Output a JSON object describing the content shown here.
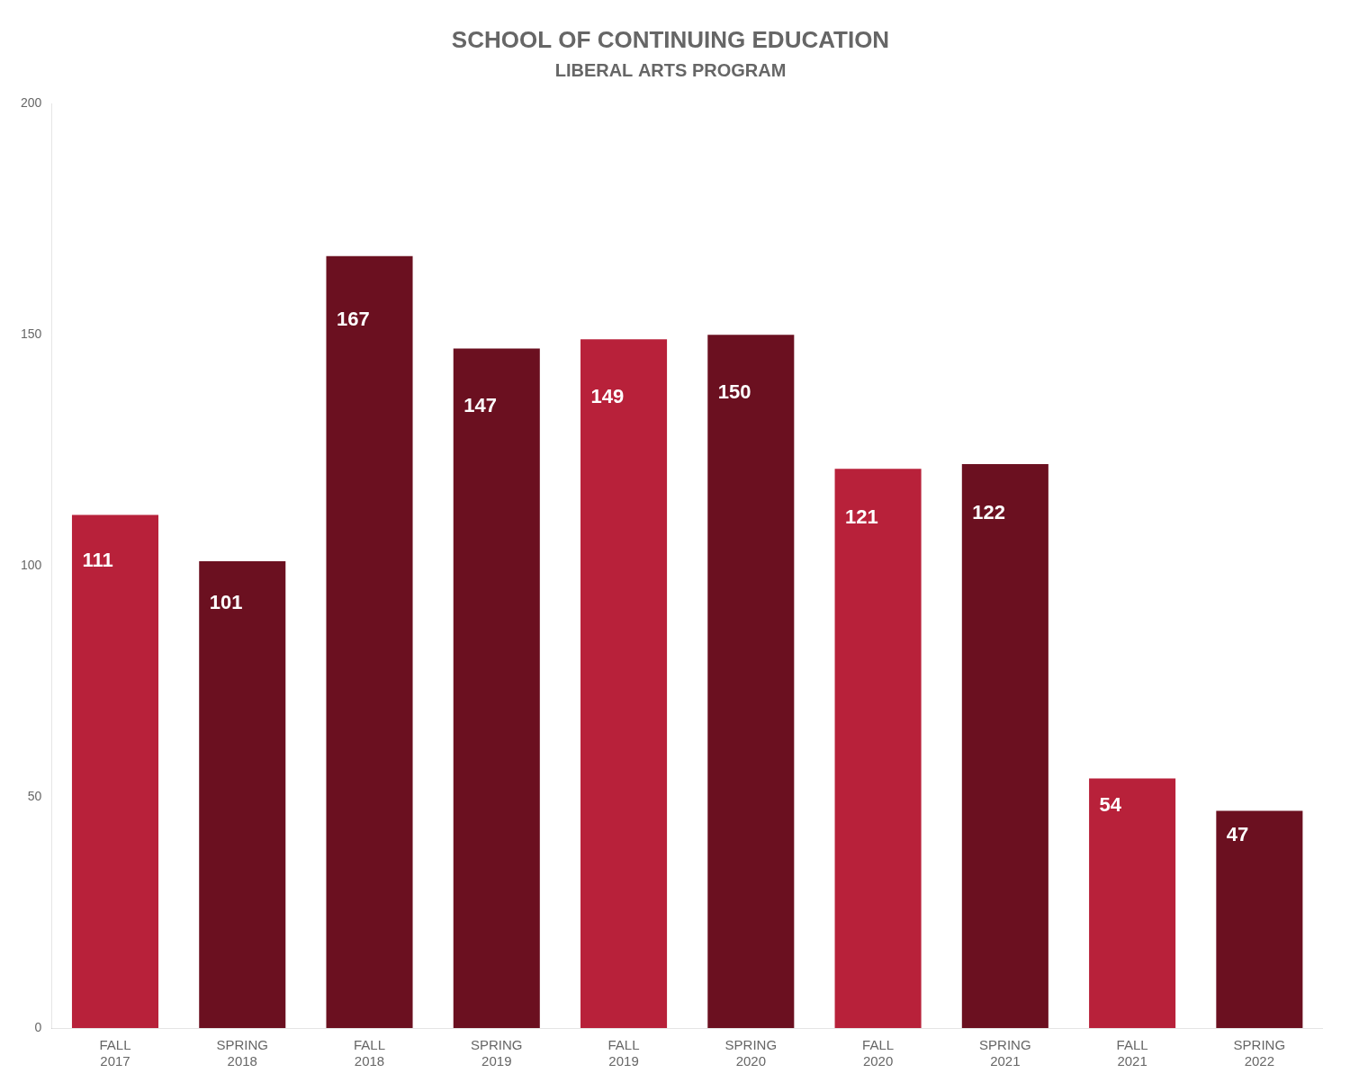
{
  "chart_data": {
    "type": "bar",
    "title": "SCHOOL OF CONTINUING EDUCATION",
    "subtitle": "LIBERAL ARTS PROGRAM",
    "categories": [
      [
        "FALL",
        "2017"
      ],
      [
        "SPRING",
        "2018"
      ],
      [
        "FALL",
        "2018"
      ],
      [
        "SPRING",
        "2019"
      ],
      [
        "FALL",
        "2019"
      ],
      [
        "SPRING",
        "2020"
      ],
      [
        "FALL",
        "2020"
      ],
      [
        "SPRING",
        "2021"
      ],
      [
        "FALL",
        "2021"
      ],
      [
        "SPRING",
        "2022"
      ]
    ],
    "values": [
      111,
      101,
      167,
      147,
      149,
      150,
      121,
      122,
      54,
      47
    ],
    "colors": [
      "#B8213A",
      "#6B1020",
      "#6B1020",
      "#6B1020",
      "#B8213A",
      "#6B1020",
      "#B8213A",
      "#6B1020",
      "#B8213A",
      "#6B1020"
    ],
    "ylim": [
      0,
      200
    ],
    "yticks": [
      0,
      50,
      100,
      150,
      200
    ],
    "grid": false,
    "data_labels": true
  }
}
